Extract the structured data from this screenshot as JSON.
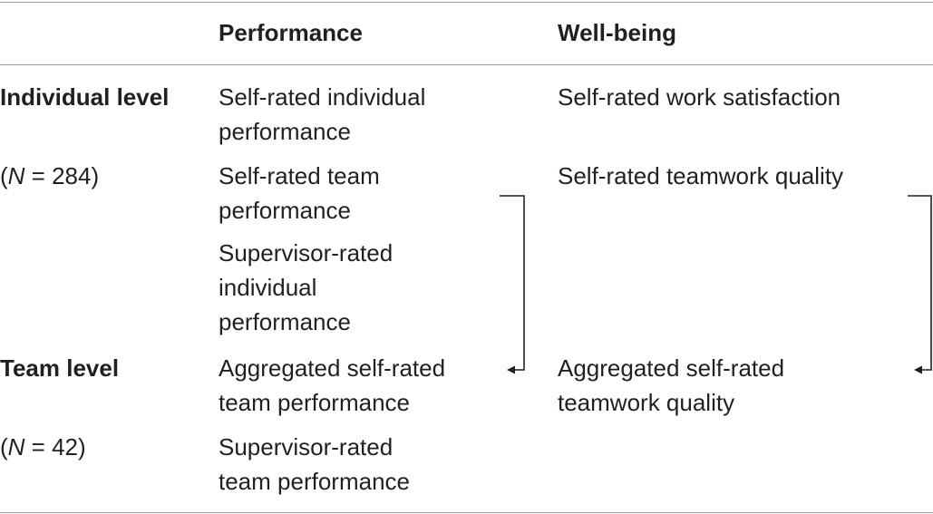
{
  "table": {
    "headers": {
      "performance": "Performance",
      "wellbeing": "Well-being"
    },
    "rows": {
      "individual": {
        "label": "Individual level",
        "n_prefix": "(",
        "n_var": "N",
        "n_rest": " = 284)",
        "performance": [
          [
            "Self-rated individual",
            "performance"
          ],
          [
            "Self-rated team",
            "performance"
          ],
          [
            "Supervisor-rated",
            "individual",
            "performance"
          ]
        ],
        "wellbeing": [
          "Self-rated work satisfaction",
          "Self-rated teamwork quality"
        ]
      },
      "team": {
        "label": "Team level",
        "n_prefix": "(",
        "n_var": "N",
        "n_rest": " = 42)",
        "performance": [
          [
            "Aggregated self-rated",
            "team performance"
          ],
          [
            "Supervisor-rated",
            "team performance"
          ]
        ],
        "wellbeing": [
          [
            "Aggregated self-rated",
            "teamwork quality"
          ]
        ]
      }
    }
  }
}
